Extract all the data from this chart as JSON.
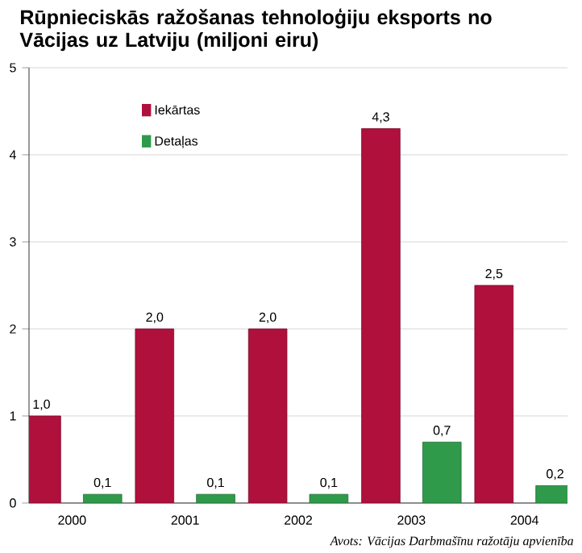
{
  "chart_data": {
    "type": "bar",
    "title": "Rūpnieciskās ražošanas tehnoloģiju eksports no Vācijas uz Latviju (miljoni eiru)",
    "categories": [
      "2000",
      "2001",
      "2002",
      "2003",
      "2004"
    ],
    "series": [
      {
        "name": "Iekārtas",
        "color": "#b0103c",
        "values": [
          1.0,
          2.0,
          2.0,
          4.3,
          2.5
        ],
        "value_labels": [
          "1,0",
          "2,0",
          "2,0",
          "4,3",
          "2,5"
        ]
      },
      {
        "name": "Detaļas",
        "color": "#2f9a4a",
        "values": [
          0.1,
          0.1,
          0.1,
          0.7,
          0.2
        ],
        "value_labels": [
          "0,1",
          "0,1",
          "0,1",
          "0,7",
          "0,2"
        ]
      }
    ],
    "ylim": [
      0,
      5
    ],
    "yticks": [
      0,
      1,
      2,
      3,
      4,
      5
    ],
    "grid": "y",
    "legend": "top left",
    "annotations": [
      "Avots: Vācijas Darbmašīnu ražotāju apvienība"
    ]
  }
}
